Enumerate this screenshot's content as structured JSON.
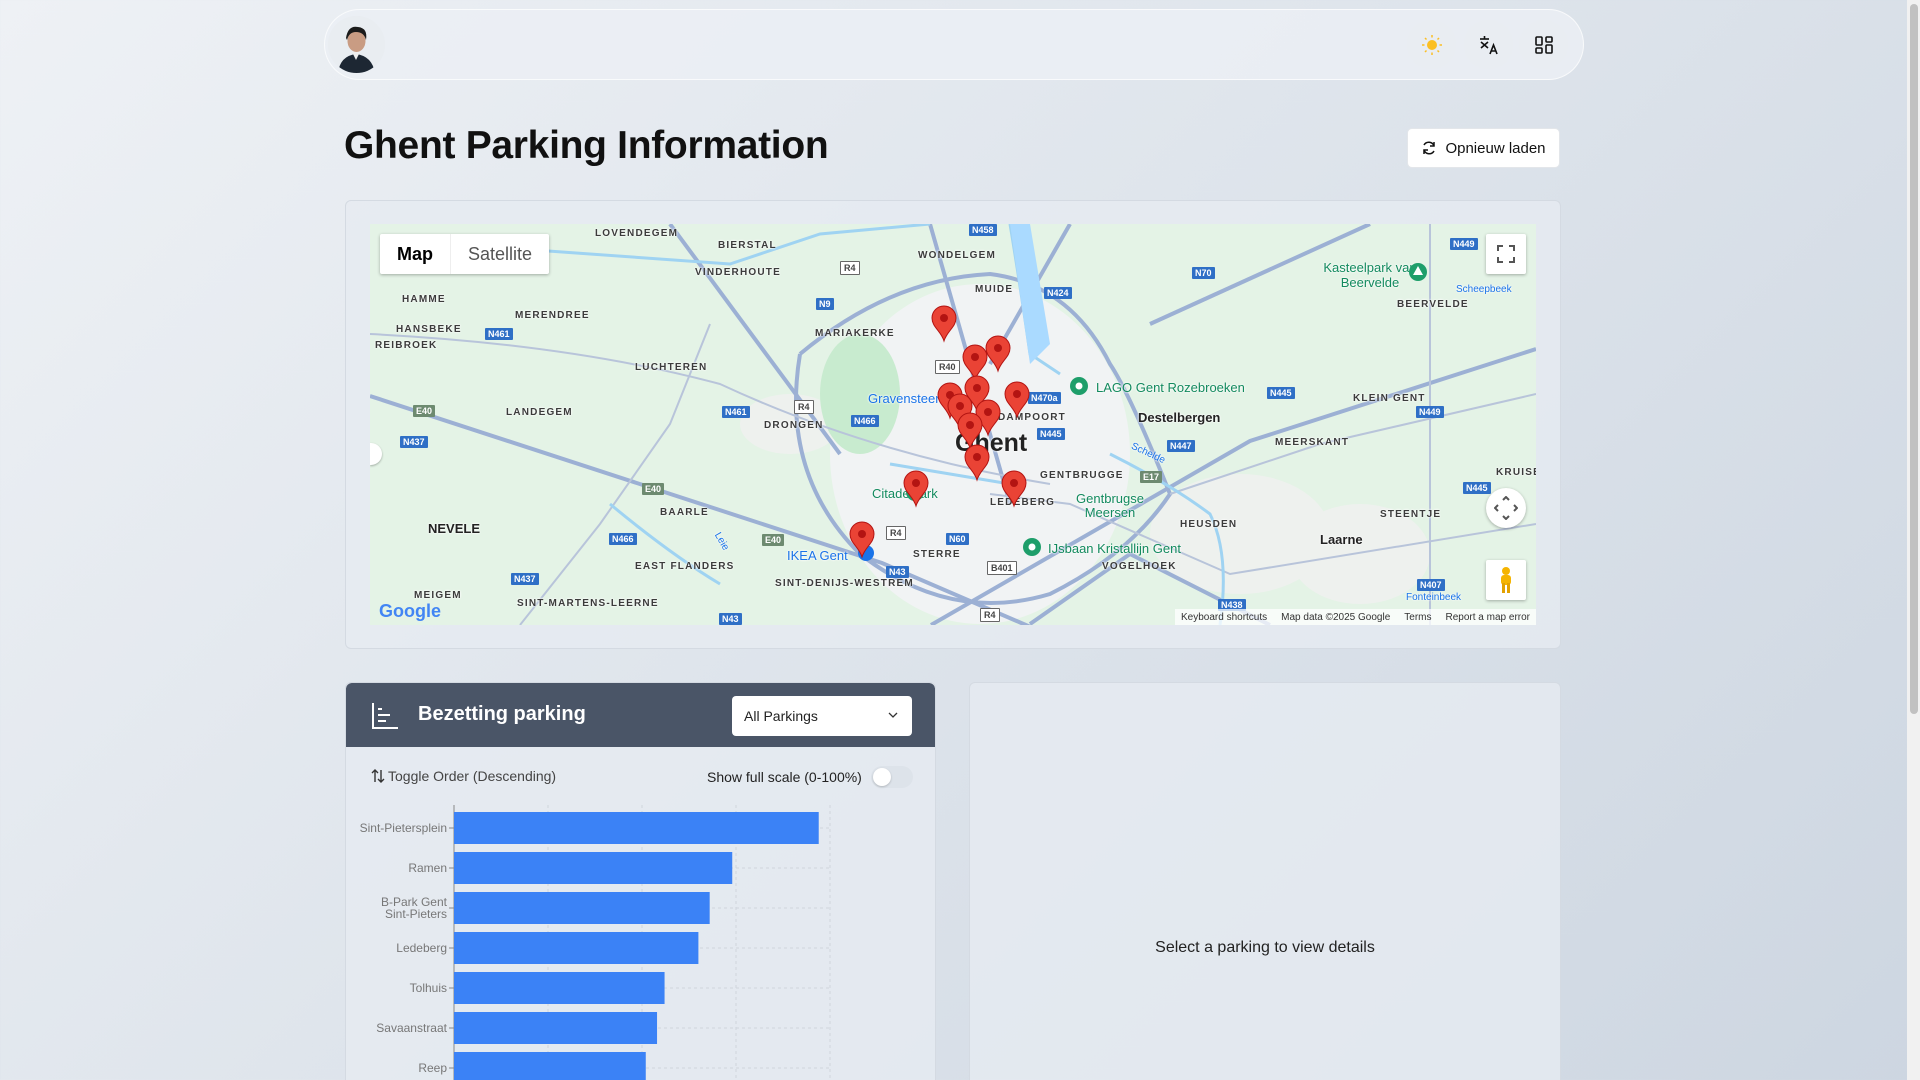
{
  "header": {
    "avatar_alt": "user avatar",
    "theme_icon": "sun-icon",
    "language_icon": "translate-icon",
    "apps_icon": "grid-icon"
  },
  "page": {
    "title": "Ghent Parking Information",
    "reload_label": "Opnieuw laden"
  },
  "map": {
    "type_map": "Map",
    "type_satellite": "Satellite",
    "labels": [
      "LOVENDEGEM",
      "BIERSTAL",
      "VINDERHOUTE",
      "WONDELGEM",
      "MUIDE",
      "HAMME",
      "MERENDREE",
      "HANSBEKE",
      "REIBROEK",
      "MARIAKERKE",
      "LUCHTEREN",
      "LANDEGEM",
      "DRONGEN",
      "Gravensteen",
      "Ghent",
      "DAMPOORT",
      "Destelbergen",
      "LAGO Gent Rozebroeken",
      "Kasteelpark van Beervelde",
      "BEERVELDE",
      "KLEIN GENT",
      "MEERSKANT",
      "GENTBRUGGE",
      "Gentbrugse Meersen",
      "Citadelpark",
      "NEVELE",
      "BAARLE",
      "EAST FLANDERS",
      "IKEA Gent",
      "STERRE",
      "SINT-DENIJS-WESTREM",
      "IJsbaan Kristallijn Gent",
      "VOGELHOEK",
      "HEUSDEN",
      "Laarne",
      "STEENTJE",
      "MEIGEM",
      "SINT-MARTENS-LEERNE",
      "LEDEBERG",
      "Scheepbeek",
      "Fonteinbeek",
      "Leie",
      "Schelde",
      "KRUISE"
    ],
    "shields": [
      "N458",
      "N449",
      "R4",
      "N9",
      "N424",
      "N70",
      "N461",
      "R40",
      "N470a",
      "N445",
      "N449",
      "E40",
      "N437",
      "N461",
      "R4",
      "N466",
      "N445",
      "N447",
      "E17",
      "E40",
      "N466",
      "E40",
      "R4",
      "N60",
      "N43",
      "N437",
      "B401",
      "R4",
      "N43",
      "N438",
      "N407",
      "N445"
    ],
    "google_logo": "Google",
    "attribution": [
      "Keyboard shortcuts",
      "Map data ©2025 Google",
      "Terms",
      "Report a map error"
    ],
    "marker_count": 13
  },
  "chart_panel": {
    "title": "Bezetting parking",
    "select_value": "All Parkings",
    "toggle_order_label": "Toggle Order (Descending)",
    "full_scale_label": "Show full scale (0-100%)",
    "full_scale_on": false
  },
  "chart_data": {
    "type": "bar",
    "orientation": "horizontal",
    "categories": [
      "Sint-Pietersplein",
      "Ramen",
      "B-Park Gent Sint-Pieters",
      "Ledeberg",
      "Tolhuis",
      "Savaanstraat",
      "Reep"
    ],
    "category_lines": [
      [
        "Sint-Pietersplein"
      ],
      [
        "Ramen"
      ],
      [
        "B-Park Gent",
        "Sint-Pieters"
      ],
      [
        "Ledeberg"
      ],
      [
        "Tolhuis"
      ],
      [
        "Savaanstraat"
      ],
      [
        "Reep"
      ]
    ],
    "values": [
      77.6,
      59.2,
      54.4,
      52.0,
      44.8,
      43.2,
      40.8
    ],
    "xlim": [
      0,
      80
    ],
    "grid": true,
    "color": "#3b82f6"
  },
  "details_panel": {
    "placeholder": "Select a parking to view details"
  }
}
